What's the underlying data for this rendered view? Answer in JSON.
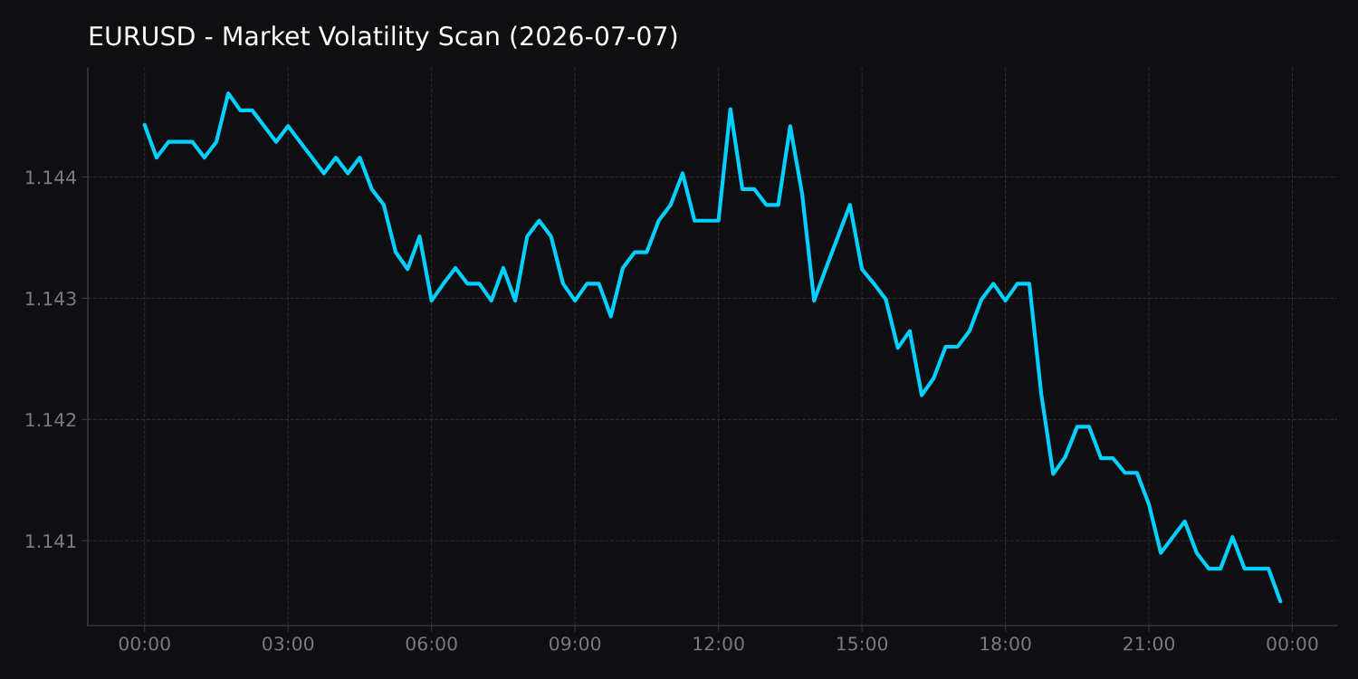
{
  "chart_data": {
    "type": "line",
    "title": "EURUSD - Market Volatility Scan (2026-07-07)",
    "x": [
      0,
      0.25,
      0.5,
      0.75,
      1,
      1.25,
      1.5,
      1.75,
      2,
      2.25,
      2.5,
      2.75,
      3,
      3.25,
      3.5,
      3.75,
      4,
      4.25,
      4.5,
      4.75,
      5,
      5.25,
      5.5,
      5.75,
      6,
      6.25,
      6.5,
      6.75,
      7,
      7.25,
      7.5,
      7.75,
      8,
      8.25,
      8.5,
      8.75,
      9,
      9.25,
      9.5,
      9.75,
      10,
      10.25,
      10.5,
      10.75,
      11,
      11.25,
      11.5,
      11.75,
      12,
      12.25,
      12.5,
      12.75,
      13,
      13.25,
      13.5,
      13.75,
      14,
      14.25,
      14.5,
      14.75,
      15,
      15.25,
      15.5,
      15.75,
      16,
      16.25,
      16.5,
      16.75,
      17,
      17.25,
      17.5,
      17.75,
      18,
      18.25,
      18.5,
      18.75,
      19,
      19.25,
      19.5,
      19.75,
      20,
      20.25,
      20.5,
      20.75,
      21,
      21.25,
      21.5,
      21.75,
      22,
      22.25,
      22.5,
      22.75,
      23,
      23.25,
      23.5,
      23.75
    ],
    "series": [
      {
        "color": "#00d0ff",
        "values": [
          1.14443,
          1.14416,
          1.14429,
          1.14429,
          1.14429,
          1.14416,
          1.14429,
          1.14469,
          1.14455,
          1.14455,
          1.14442,
          1.14429,
          1.14442,
          1.14429,
          1.14416,
          1.14403,
          1.14416,
          1.14403,
          1.14416,
          1.1439,
          1.14377,
          1.14338,
          1.14324,
          1.14351,
          1.14298,
          1.14312,
          1.14325,
          1.14312,
          1.14312,
          1.14298,
          1.14325,
          1.14298,
          1.14351,
          1.14364,
          1.14351,
          1.14312,
          1.14298,
          1.14312,
          1.14312,
          1.14285,
          1.14325,
          1.14338,
          1.14338,
          1.14364,
          1.14377,
          1.14403,
          1.14364,
          1.14364,
          1.14364,
          1.14456,
          1.1439,
          1.1439,
          1.14377,
          1.14377,
          1.14442,
          1.14386,
          1.14298,
          1.14325,
          1.14351,
          1.14377,
          1.14324,
          1.14312,
          1.14299,
          1.14259,
          1.14273,
          1.1422,
          1.14234,
          1.1426,
          1.1426,
          1.14273,
          1.14299,
          1.14312,
          1.14298,
          1.14312,
          1.14312,
          1.14221,
          1.14155,
          1.14169,
          1.14194,
          1.14194,
          1.14168,
          1.14168,
          1.14156,
          1.14156,
          1.1413,
          1.1409,
          1.14103,
          1.14116,
          1.1409,
          1.14077,
          1.14077,
          1.14103,
          1.14077,
          1.14077,
          1.14077,
          1.1405
        ]
      }
    ],
    "xlim": [
      -1.1875,
      24.9375
    ],
    "xticks": [
      {
        "value": 0,
        "label": "00:00"
      },
      {
        "value": 3,
        "label": "03:00"
      },
      {
        "value": 6,
        "label": "06:00"
      },
      {
        "value": 9,
        "label": "09:00"
      },
      {
        "value": 12,
        "label": "12:00"
      },
      {
        "value": 15,
        "label": "15:00"
      },
      {
        "value": 18,
        "label": "18:00"
      },
      {
        "value": 21,
        "label": "21:00"
      },
      {
        "value": 24,
        "label": "00:00"
      }
    ],
    "ylim": [
      1.1403,
      1.1449
    ],
    "yticks": [
      1.141,
      1.142,
      1.143,
      1.144
    ],
    "grid": true
  }
}
